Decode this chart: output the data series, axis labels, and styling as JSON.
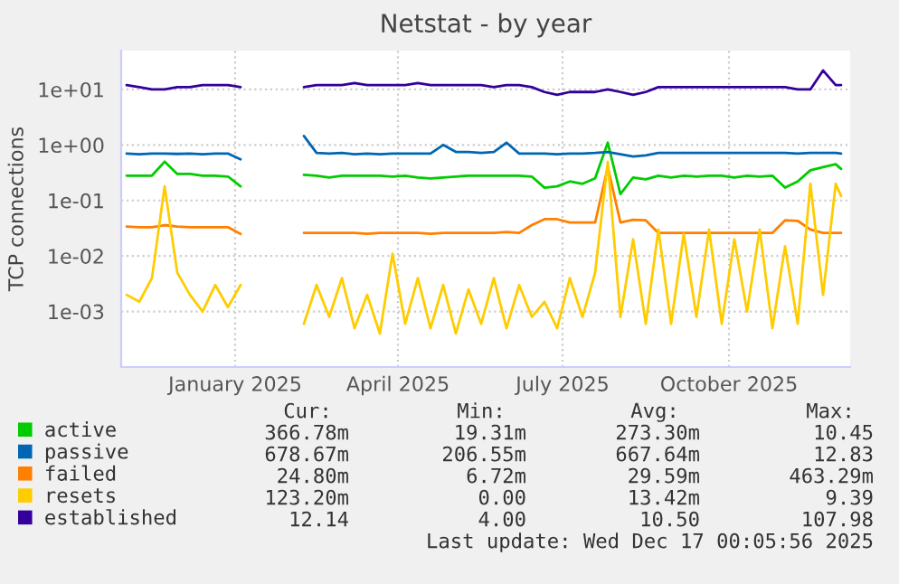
{
  "chart_data": {
    "type": "line",
    "title": "Netstat - by year",
    "ylabel": "TCP connections",
    "log": true,
    "grid": true,
    "legend": "bottom left",
    "marker": "none",
    "line_style": "solid",
    "ylim": [
      0.0001,
      50
    ],
    "yticks": [
      {
        "value": 0.001,
        "label": "1e-03"
      },
      {
        "value": 0.01,
        "label": "1e-02"
      },
      {
        "value": 0.1,
        "label": "1e-01"
      },
      {
        "value": 1,
        "label": "1e+00"
      },
      {
        "value": 10,
        "label": "1e+01"
      }
    ],
    "xlim": [
      "2024-11-14",
      "2025-12-22"
    ],
    "xticks": [
      {
        "value": "2025-01-16",
        "label": "January 2025"
      },
      {
        "value": "2025-04-16",
        "label": "April 2025"
      },
      {
        "value": "2025-07-16",
        "label": "July 2025"
      },
      {
        "value": "2025-10-16",
        "label": "October 2025"
      }
    ],
    "x": [
      "2024-11-17",
      "2024-11-24",
      "2024-12-01",
      "2024-12-08",
      "2024-12-15",
      "2024-12-22",
      "2024-12-29",
      "2025-01-05",
      "2025-01-12",
      "2025-01-19",
      "2025-01-26",
      "2025-02-02",
      "2025-02-09",
      "2025-02-16",
      "2025-02-23",
      "2025-03-02",
      "2025-03-09",
      "2025-03-16",
      "2025-03-23",
      "2025-03-30",
      "2025-04-06",
      "2025-04-13",
      "2025-04-20",
      "2025-04-27",
      "2025-05-04",
      "2025-05-11",
      "2025-05-18",
      "2025-05-25",
      "2025-06-01",
      "2025-06-08",
      "2025-06-15",
      "2025-06-22",
      "2025-06-29",
      "2025-07-06",
      "2025-07-13",
      "2025-07-20",
      "2025-07-27",
      "2025-08-03",
      "2025-08-10",
      "2025-08-17",
      "2025-08-24",
      "2025-08-31",
      "2025-09-07",
      "2025-09-14",
      "2025-09-21",
      "2025-09-28",
      "2025-10-05",
      "2025-10-12",
      "2025-10-19",
      "2025-10-26",
      "2025-11-02",
      "2025-11-09",
      "2025-11-16",
      "2025-11-23",
      "2025-11-30",
      "2025-12-07",
      "2025-12-14",
      "2025-12-17"
    ],
    "series": [
      {
        "name": "active",
        "color": "#00cc00",
        "values": [
          0.28,
          0.28,
          0.28,
          0.5,
          0.3,
          0.3,
          0.28,
          0.28,
          0.27,
          0.18,
          null,
          null,
          null,
          null,
          0.29,
          0.28,
          0.26,
          0.28,
          0.28,
          0.28,
          0.28,
          0.27,
          0.28,
          0.26,
          0.25,
          0.26,
          0.27,
          0.28,
          0.28,
          0.28,
          0.28,
          0.28,
          0.27,
          0.17,
          0.18,
          0.22,
          0.2,
          0.25,
          1.1,
          0.13,
          0.26,
          0.24,
          0.28,
          0.26,
          0.28,
          0.27,
          0.28,
          0.28,
          0.26,
          0.28,
          0.27,
          0.28,
          0.17,
          0.22,
          0.35,
          0.4,
          0.45,
          0.37
        ]
      },
      {
        "name": "passive",
        "color": "#0066b3",
        "values": [
          0.7,
          0.68,
          0.7,
          0.7,
          0.69,
          0.7,
          0.68,
          0.7,
          0.7,
          0.55,
          null,
          null,
          null,
          null,
          1.45,
          0.72,
          0.7,
          0.72,
          0.68,
          0.7,
          0.68,
          0.7,
          0.7,
          0.7,
          0.7,
          1.0,
          0.75,
          0.75,
          0.72,
          0.75,
          1.1,
          0.7,
          0.7,
          0.7,
          0.68,
          0.7,
          0.7,
          0.72,
          0.75,
          0.68,
          0.62,
          0.65,
          0.72,
          0.72,
          0.72,
          0.72,
          0.72,
          0.72,
          0.72,
          0.72,
          0.72,
          0.72,
          0.72,
          0.7,
          0.72,
          0.72,
          0.72,
          0.7
        ]
      },
      {
        "name": "failed",
        "color": "#ff8000",
        "values": [
          0.034,
          0.033,
          0.033,
          0.036,
          0.034,
          0.033,
          0.033,
          0.033,
          0.033,
          0.025,
          null,
          null,
          null,
          null,
          0.026,
          0.026,
          0.026,
          0.026,
          0.026,
          0.025,
          0.026,
          0.026,
          0.026,
          0.026,
          0.025,
          0.026,
          0.026,
          0.026,
          0.026,
          0.026,
          0.027,
          0.026,
          0.036,
          0.046,
          0.046,
          0.04,
          0.04,
          0.04,
          0.4,
          0.04,
          0.045,
          0.044,
          0.026,
          0.026,
          0.026,
          0.026,
          0.026,
          0.026,
          0.026,
          0.026,
          0.026,
          0.026,
          0.044,
          0.043,
          0.03,
          0.026,
          0.026,
          0.026
        ]
      },
      {
        "name": "resets",
        "color": "#ffcc00",
        "values": [
          0.002,
          0.0015,
          0.004,
          0.18,
          0.005,
          0.002,
          0.001,
          0.003,
          0.0012,
          0.003,
          null,
          null,
          null,
          null,
          0.0006,
          0.003,
          0.0008,
          0.004,
          0.0005,
          0.002,
          0.0004,
          0.011,
          0.0006,
          0.004,
          0.0005,
          0.003,
          0.0004,
          0.0025,
          0.0006,
          0.004,
          0.0005,
          0.003,
          0.0008,
          0.0015,
          0.0005,
          0.004,
          0.0008,
          0.005,
          0.5,
          0.0008,
          0.02,
          0.0006,
          0.03,
          0.0006,
          0.025,
          0.0008,
          0.03,
          0.0006,
          0.02,
          0.001,
          0.03,
          0.0005,
          0.015,
          0.0006,
          0.2,
          0.002,
          0.2,
          0.12
        ]
      },
      {
        "name": "established",
        "color": "#330099",
        "values": [
          12,
          11,
          10,
          10,
          11,
          11,
          12,
          12,
          12,
          11,
          null,
          null,
          null,
          null,
          11,
          12,
          12,
          12,
          13,
          12,
          12,
          12,
          12,
          13,
          12,
          12,
          12,
          12,
          12,
          11,
          12,
          12,
          11,
          9,
          8,
          9,
          9,
          9,
          10,
          9,
          8,
          9,
          11,
          11,
          11,
          11,
          11,
          11,
          11,
          11,
          11,
          11,
          11,
          10,
          10,
          22,
          12,
          12
        ]
      }
    ],
    "annotations": [
      "Cur:",
      "Min:",
      "Avg:",
      "Max:",
      "366.78m",
      "19.31m",
      "273.30m",
      "10.45",
      "678.67m",
      "206.55m",
      "667.64m",
      "12.83",
      "24.80m",
      "6.72m",
      "29.59m",
      "463.29m",
      "123.20m",
      "0.00",
      "13.42m",
      "9.39",
      "12.14",
      "4.00",
      "10.50",
      "107.98",
      "Last update: Wed Dec 17 00:05:56 2025"
    ]
  }
}
